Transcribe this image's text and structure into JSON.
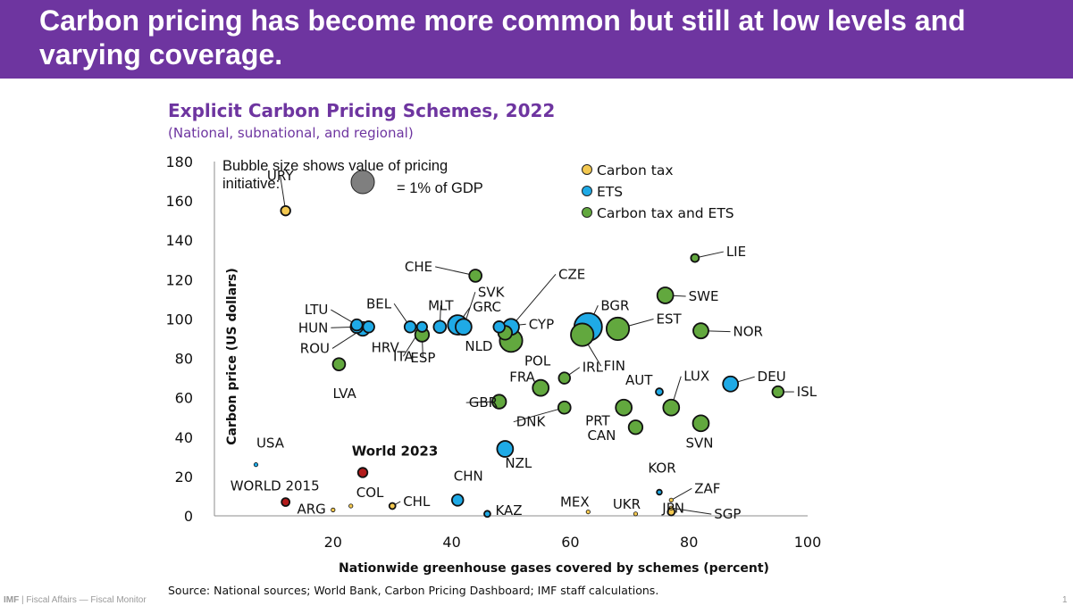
{
  "page": {
    "title": "Carbon pricing has become more common but still at low levels and varying coverage.",
    "source": "Source: National sources; World Bank, Carbon Pricing Dashboard; IMF staff calculations.",
    "brand_bold": "IMF",
    "brand_rest": " | Fiscal Affairs — Fiscal Monitor",
    "page_number": "1"
  },
  "colors": {
    "banner": "#6e35a0",
    "carbon_tax": "#f3c850",
    "ets": "#1faae6",
    "both": "#62a83e",
    "world": "#b31b1b",
    "reference_bubble": "#7f7f7f"
  },
  "chart_data": {
    "type": "scatter",
    "title": "Explicit Carbon Pricing Schemes, 2022",
    "subtitle": "(National, subnational, and regional)",
    "xlabel": "Nationwide greenhouse gases covered by schemes (percent)",
    "ylabel": "Carbon price (US dollars)",
    "xlim": [
      0,
      100
    ],
    "ylim": [
      0,
      180
    ],
    "xticks": [
      20,
      40,
      60,
      80,
      100
    ],
    "yticks": [
      0,
      20,
      40,
      60,
      80,
      100,
      120,
      140,
      160,
      180
    ],
    "grid": false,
    "legend_position": "top-right",
    "legend": [
      {
        "key": "tax",
        "label": "Carbon tax"
      },
      {
        "key": "ets",
        "label": "ETS"
      },
      {
        "key": "both",
        "label": "Carbon tax and ETS"
      }
    ],
    "size_note": {
      "line1": "Bubble size shows value of pricing",
      "line2": "initiative:",
      "equals": "= 1% of GDP"
    },
    "points": [
      {
        "label": "URY",
        "x": 12,
        "y": 155,
        "type": "tax",
        "size": 0.07
      },
      {
        "label": "USA",
        "x": 7,
        "y": 26,
        "type": "ets",
        "size": 0.01
      },
      {
        "label": "WORLD 2015",
        "x": 12,
        "y": 7,
        "type": "world",
        "size": 0.05
      },
      {
        "label": "World 2023",
        "x": 25,
        "y": 22,
        "type": "world",
        "size": 0.07
      },
      {
        "label": "ARG",
        "x": 20,
        "y": 3,
        "type": "tax",
        "size": 0.01
      },
      {
        "label": "COL",
        "x": 23,
        "y": 5,
        "type": "tax",
        "size": 0.01
      },
      {
        "label": "CHL",
        "x": 30,
        "y": 5,
        "type": "tax",
        "size": 0.03
      },
      {
        "label": "CHN",
        "x": 41,
        "y": 8,
        "type": "ets",
        "size": 0.1
      },
      {
        "label": "KAZ",
        "x": 46,
        "y": 1,
        "type": "ets",
        "size": 0.03
      },
      {
        "label": "MEX",
        "x": 63,
        "y": 2,
        "type": "tax",
        "size": 0.01
      },
      {
        "label": "UKR",
        "x": 71,
        "y": 1,
        "type": "tax",
        "size": 0.01
      },
      {
        "label": "KOR",
        "x": 75,
        "y": 12,
        "type": "ets",
        "size": 0.02
      },
      {
        "label": "JPN",
        "x": 77,
        "y": 2,
        "type": "tax",
        "size": 0.04
      },
      {
        "label": "ZAF",
        "x": 77,
        "y": 8,
        "type": "tax",
        "size": 0.01
      },
      {
        "label": "SGP",
        "x": 77,
        "y": 4,
        "type": "tax",
        "size": 0.01
      },
      {
        "label": "NZL",
        "x": 49,
        "y": 34,
        "type": "ets",
        "size": 0.2
      },
      {
        "label": "LVA",
        "x": 21,
        "y": 77,
        "type": "both",
        "size": 0.12
      },
      {
        "label": "LTU",
        "x": 24,
        "y": 97,
        "type": "ets",
        "size": 0.1
      },
      {
        "label": "HUN",
        "x": 24,
        "y": 96,
        "type": "ets",
        "size": 0.12
      },
      {
        "label": "ROU",
        "x": 25,
        "y": 95,
        "type": "ets",
        "size": 0.15
      },
      {
        "label": "HRV",
        "x": 26,
        "y": 96,
        "type": "ets",
        "size": 0.1
      },
      {
        "label": "BEL",
        "x": 33,
        "y": 96,
        "type": "ets",
        "size": 0.1
      },
      {
        "label": "ITA",
        "x": 35,
        "y": 96,
        "type": "ets",
        "size": 0.08
      },
      {
        "label": "ESP",
        "x": 35,
        "y": 92,
        "type": "both",
        "size": 0.15
      },
      {
        "label": "MLT",
        "x": 38,
        "y": 96,
        "type": "ets",
        "size": 0.12
      },
      {
        "label": "CHE",
        "x": 44,
        "y": 122,
        "type": "both",
        "size": 0.12
      },
      {
        "label": "GRC",
        "x": 41,
        "y": 97,
        "type": "ets",
        "size": 0.3
      },
      {
        "label": "SVK",
        "x": 42,
        "y": 96,
        "type": "ets",
        "size": 0.2
      },
      {
        "label": "CZE",
        "x": 50,
        "y": 96,
        "type": "ets",
        "size": 0.2
      },
      {
        "label": "CYP",
        "x": 48,
        "y": 96,
        "type": "ets",
        "size": 0.1
      },
      {
        "label": "NLD",
        "x": 49,
        "y": 93,
        "type": "both",
        "size": 0.15
      },
      {
        "label": "POL",
        "x": 50,
        "y": 89,
        "type": "both",
        "size": 0.4
      },
      {
        "label": "BGR",
        "x": 63,
        "y": 96,
        "type": "ets",
        "size": 0.6
      },
      {
        "label": "FIN",
        "x": 62,
        "y": 92,
        "type": "both",
        "size": 0.4
      },
      {
        "label": "EST",
        "x": 68,
        "y": 95,
        "type": "both",
        "size": 0.4
      },
      {
        "label": "SWE",
        "x": 76,
        "y": 112,
        "type": "both",
        "size": 0.2
      },
      {
        "label": "NOR",
        "x": 82,
        "y": 94,
        "type": "both",
        "size": 0.18
      },
      {
        "label": "LIE",
        "x": 81,
        "y": 131,
        "type": "both",
        "size": 0.05
      },
      {
        "label": "FRA",
        "x": 55,
        "y": 65,
        "type": "both",
        "size": 0.2
      },
      {
        "label": "IRL",
        "x": 59,
        "y": 70,
        "type": "both",
        "size": 0.1
      },
      {
        "label": "GBR",
        "x": 48,
        "y": 58,
        "type": "both",
        "size": 0.15
      },
      {
        "label": "DNK",
        "x": 59,
        "y": 55,
        "type": "both",
        "size": 0.12
      },
      {
        "label": "PRT",
        "x": 69,
        "y": 55,
        "type": "both",
        "size": 0.2
      },
      {
        "label": "CAN",
        "x": 71,
        "y": 45,
        "type": "both",
        "size": 0.15
      },
      {
        "label": "AUT",
        "x": 75,
        "y": 63,
        "type": "ets",
        "size": 0.04
      },
      {
        "label": "LUX",
        "x": 77,
        "y": 55,
        "type": "both",
        "size": 0.2
      },
      {
        "label": "SVN",
        "x": 82,
        "y": 47,
        "type": "both",
        "size": 0.2
      },
      {
        "label": "DEU",
        "x": 87,
        "y": 67,
        "type": "ets",
        "size": 0.18
      },
      {
        "label": "ISL",
        "x": 95,
        "y": 63,
        "type": "both",
        "size": 0.1
      }
    ]
  }
}
